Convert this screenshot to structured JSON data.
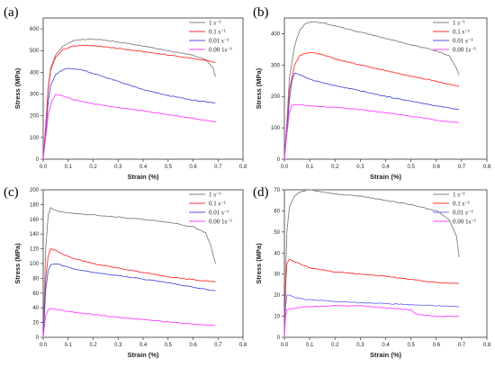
{
  "chart_data": [
    {
      "type": "line",
      "panel_label": "(a)",
      "xlabel": "Strain (%)",
      "ylabel": "Stress (MPa)",
      "xlim": [
        0.0,
        0.8
      ],
      "ylim": [
        0,
        650
      ],
      "xticks": [
        "0.0",
        "0.1",
        "0.2",
        "0.3",
        "0.4",
        "0.5",
        "0.6",
        "0.7",
        "0.8"
      ],
      "yticks": [
        "0",
        "100",
        "200",
        "300",
        "400",
        "500",
        "600"
      ],
      "legend_position": "top-right",
      "series": [
        {
          "name": "1 s⁻¹",
          "color": "#808080",
          "x": [
            0,
            0.01,
            0.02,
            0.03,
            0.05,
            0.08,
            0.12,
            0.16,
            0.2,
            0.3,
            0.4,
            0.5,
            0.6,
            0.65,
            0.68,
            0.69
          ],
          "y": [
            0,
            150,
            330,
            420,
            480,
            520,
            545,
            552,
            553,
            540,
            522,
            500,
            478,
            460,
            420,
            380
          ]
        },
        {
          "name": "0.1 s⁻¹",
          "color": "#ff3030",
          "x": [
            0,
            0.01,
            0.02,
            0.03,
            0.05,
            0.08,
            0.12,
            0.16,
            0.2,
            0.3,
            0.4,
            0.5,
            0.6,
            0.65,
            0.69
          ],
          "y": [
            0,
            150,
            320,
            410,
            470,
            505,
            520,
            524,
            523,
            510,
            495,
            480,
            463,
            455,
            445
          ]
        },
        {
          "name": "0.01 s⁻¹",
          "color": "#5050e0",
          "x": [
            0,
            0.01,
            0.02,
            0.03,
            0.05,
            0.08,
            0.1,
            0.13,
            0.16,
            0.2,
            0.3,
            0.4,
            0.5,
            0.6,
            0.66,
            0.69
          ],
          "y": [
            0,
            120,
            260,
            340,
            390,
            412,
            417,
            416,
            410,
            395,
            358,
            320,
            293,
            272,
            262,
            260
          ]
        },
        {
          "name": "0.00 1s⁻¹",
          "color": "#ff40ff",
          "x": [
            0,
            0.01,
            0.02,
            0.035,
            0.05,
            0.08,
            0.12,
            0.2,
            0.3,
            0.4,
            0.5,
            0.6,
            0.69
          ],
          "y": [
            0,
            100,
            200,
            270,
            298,
            292,
            275,
            255,
            238,
            222,
            205,
            188,
            172
          ]
        }
      ]
    },
    {
      "type": "line",
      "panel_label": "(b)",
      "xlabel": "Strain (%)",
      "ylabel": "Stress (MPa)",
      "xlim": [
        0.0,
        0.8
      ],
      "ylim": [
        0,
        450
      ],
      "xticks": [
        "0.0",
        "0.1",
        "0.2",
        "0.3",
        "0.4",
        "0.5",
        "0.6",
        "0.7",
        "0.8"
      ],
      "yticks": [
        "0",
        "100",
        "200",
        "300",
        "400"
      ],
      "legend_position": "top-right",
      "series": [
        {
          "name": "1 s⁻¹",
          "color": "#808080",
          "x": [
            0,
            0.01,
            0.02,
            0.04,
            0.06,
            0.08,
            0.1,
            0.12,
            0.15,
            0.2,
            0.3,
            0.4,
            0.5,
            0.6,
            0.65,
            0.68,
            0.69
          ],
          "y": [
            0,
            120,
            260,
            360,
            410,
            430,
            436,
            437,
            435,
            425,
            405,
            385,
            365,
            345,
            330,
            290,
            268
          ]
        },
        {
          "name": "0.1 s⁻¹",
          "color": "#ff3030",
          "x": [
            0,
            0.01,
            0.02,
            0.04,
            0.06,
            0.08,
            0.1,
            0.12,
            0.15,
            0.2,
            0.3,
            0.4,
            0.5,
            0.6,
            0.69
          ],
          "y": [
            0,
            100,
            220,
            300,
            330,
            338,
            339,
            338,
            333,
            320,
            300,
            282,
            265,
            248,
            232
          ]
        },
        {
          "name": "0.01 s⁻¹",
          "color": "#5050e0",
          "x": [
            0,
            0.01,
            0.02,
            0.03,
            0.04,
            0.05,
            0.08,
            0.12,
            0.2,
            0.3,
            0.4,
            0.5,
            0.6,
            0.69
          ],
          "y": [
            0,
            90,
            190,
            250,
            275,
            272,
            262,
            250,
            234,
            218,
            200,
            185,
            170,
            158
          ]
        },
        {
          "name": "0.00 1s⁻¹",
          "color": "#ff40ff",
          "x": [
            0,
            0.01,
            0.02,
            0.03,
            0.05,
            0.1,
            0.2,
            0.3,
            0.4,
            0.5,
            0.6,
            0.69
          ],
          "y": [
            0,
            80,
            150,
            172,
            174,
            170,
            165,
            158,
            148,
            137,
            125,
            116
          ]
        }
      ]
    },
    {
      "type": "line",
      "panel_label": "(c)",
      "xlabel": "Strain (%)",
      "ylabel": "Stress (MPa)",
      "xlim": [
        0.0,
        0.8
      ],
      "ylim": [
        0,
        200
      ],
      "xticks": [
        "0.0",
        "0.1",
        "0.2",
        "0.3",
        "0.4",
        "0.5",
        "0.6",
        "0.7",
        "0.8"
      ],
      "yticks": [
        "0",
        "20",
        "40",
        "60",
        "80",
        "100",
        "120",
        "140",
        "160",
        "180",
        "200"
      ],
      "legend_position": "top-right",
      "series": [
        {
          "name": "1 s⁻¹",
          "color": "#808080",
          "x": [
            0,
            0.005,
            0.01,
            0.02,
            0.03,
            0.05,
            0.08,
            0.12,
            0.2,
            0.3,
            0.4,
            0.5,
            0.6,
            0.65,
            0.67,
            0.69
          ],
          "y": [
            0,
            60,
            120,
            165,
            176,
            172,
            170,
            168,
            166,
            163,
            160,
            156,
            150,
            142,
            125,
            100
          ]
        },
        {
          "name": "0.1 s⁻¹",
          "color": "#ff3030",
          "x": [
            0,
            0.005,
            0.01,
            0.02,
            0.03,
            0.05,
            0.08,
            0.12,
            0.2,
            0.3,
            0.4,
            0.5,
            0.6,
            0.69
          ],
          "y": [
            0,
            40,
            80,
            110,
            120,
            118,
            112,
            107,
            100,
            94,
            88,
            82,
            78,
            75
          ]
        },
        {
          "name": "0.01 s⁻¹",
          "color": "#5050e0",
          "x": [
            0,
            0.005,
            0.01,
            0.02,
            0.03,
            0.05,
            0.08,
            0.12,
            0.2,
            0.3,
            0.4,
            0.5,
            0.6,
            0.69
          ],
          "y": [
            0,
            30,
            65,
            90,
            98,
            100,
            97,
            93,
            88,
            84,
            79,
            74,
            68,
            63
          ]
        },
        {
          "name": "0.00 1s⁻¹",
          "color": "#ff40ff",
          "x": [
            0,
            0.005,
            0.01,
            0.02,
            0.03,
            0.05,
            0.1,
            0.2,
            0.3,
            0.4,
            0.5,
            0.6,
            0.69
          ],
          "y": [
            0,
            15,
            30,
            37,
            39,
            38,
            35,
            31,
            27,
            24,
            21,
            18,
            16
          ]
        }
      ]
    },
    {
      "type": "line",
      "panel_label": "(d)",
      "xlabel": "Strain (%)",
      "ylabel": "Stress (MPa)",
      "xlim": [
        0.0,
        0.8
      ],
      "ylim": [
        0,
        70
      ],
      "xticks": [
        "0.0",
        "0.1",
        "0.2",
        "0.3",
        "0.4",
        "0.5",
        "0.6",
        "0.7",
        "0.8"
      ],
      "yticks": [
        "0",
        "10",
        "20",
        "30",
        "40",
        "50",
        "60",
        "70"
      ],
      "legend_position": "top-right",
      "series": [
        {
          "name": "1 s⁻¹",
          "color": "#808080",
          "x": [
            0,
            0.005,
            0.01,
            0.02,
            0.04,
            0.06,
            0.1,
            0.15,
            0.2,
            0.3,
            0.4,
            0.5,
            0.6,
            0.65,
            0.68,
            0.69
          ],
          "y": [
            0,
            30,
            50,
            62,
            67,
            69,
            70,
            69,
            68,
            67,
            65,
            63,
            60,
            56,
            48,
            38
          ]
        },
        {
          "name": "0.1 s⁻¹",
          "color": "#ff3030",
          "x": [
            0,
            0.005,
            0.01,
            0.02,
            0.04,
            0.06,
            0.1,
            0.15,
            0.2,
            0.3,
            0.4,
            0.5,
            0.6,
            0.69
          ],
          "y": [
            0,
            25,
            35,
            37,
            36,
            35,
            33,
            32,
            31,
            30,
            29,
            27.5,
            26,
            25.5
          ]
        },
        {
          "name": "0.01 s⁻¹",
          "color": "#7070ff",
          "x": [
            0,
            0.005,
            0.01,
            0.02,
            0.04,
            0.08,
            0.15,
            0.2,
            0.3,
            0.4,
            0.5,
            0.6,
            0.69
          ],
          "y": [
            0,
            15,
            20,
            20,
            19,
            18,
            17.5,
            17,
            16.5,
            16,
            15.5,
            15,
            14.5
          ]
        },
        {
          "name": "0.00 1s⁻¹",
          "color": "#ff40ff",
          "x": [
            0,
            0.005,
            0.01,
            0.02,
            0.05,
            0.1,
            0.2,
            0.3,
            0.4,
            0.5,
            0.52,
            0.55,
            0.6,
            0.69
          ],
          "y": [
            0,
            10,
            13,
            13.5,
            14,
            14.5,
            15,
            15,
            14,
            13,
            11,
            10.5,
            10,
            10
          ]
        }
      ]
    }
  ]
}
